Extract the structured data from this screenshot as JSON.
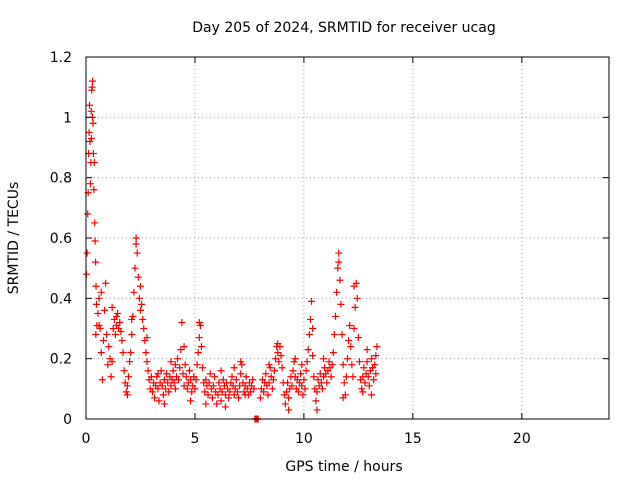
{
  "chart_data": {
    "type": "scatter",
    "title": "Day 205 of 2024, SRMTID for receiver ucag",
    "xlabel": "GPS time / hours",
    "ylabel": "SRMTID / TECUs",
    "xlim": [
      0,
      24
    ],
    "ylim": [
      0,
      1.2
    ],
    "x_ticks": [
      0,
      5,
      10,
      15,
      20
    ],
    "x_tick_labels": [
      "0",
      "5",
      "10",
      "15",
      "20"
    ],
    "y_ticks": [
      0,
      0.2,
      0.4,
      0.6,
      0.8,
      1.0,
      1.2
    ],
    "y_tick_labels": [
      "0",
      "0.2",
      "0.4",
      "0.6",
      "0.8",
      "1",
      "1.2"
    ],
    "grid": true,
    "marker": "+",
    "series": [
      {
        "name": "SRMTID",
        "color": "#ff0000",
        "points": [
          [
            0.02,
            0.48
          ],
          [
            0.05,
            0.55
          ],
          [
            0.08,
            0.68
          ],
          [
            0.1,
            0.75
          ],
          [
            0.12,
            0.88
          ],
          [
            0.14,
            0.95
          ],
          [
            0.16,
            1.04
          ],
          [
            0.18,
            0.92
          ],
          [
            0.2,
            0.78
          ],
          [
            0.22,
            0.85
          ],
          [
            0.24,
            1.02
          ],
          [
            0.26,
            1.09
          ],
          [
            0.28,
            1.1
          ],
          [
            0.3,
            1.12
          ],
          [
            0.32,
            0.98
          ],
          [
            0.34,
            0.88
          ],
          [
            0.36,
            0.76
          ],
          [
            0.38,
            0.85
          ],
          [
            0.4,
            0.65
          ],
          [
            0.42,
            0.59
          ],
          [
            0.44,
            0.52
          ],
          [
            0.46,
            0.44
          ],
          [
            0.48,
            0.38
          ],
          [
            0.5,
            0.31
          ],
          [
            0.55,
            0.35
          ],
          [
            0.6,
            0.4
          ],
          [
            0.65,
            0.3
          ],
          [
            0.7,
            0.22
          ],
          [
            0.75,
            0.13
          ],
          [
            0.8,
            0.26
          ],
          [
            0.85,
            0.36
          ],
          [
            0.9,
            0.45
          ],
          [
            0.95,
            0.28
          ],
          [
            1.0,
            0.18
          ],
          [
            1.05,
            0.24
          ],
          [
            1.1,
            0.2
          ],
          [
            1.15,
            0.14
          ],
          [
            1.2,
            0.19
          ],
          [
            1.25,
            0.3
          ],
          [
            1.3,
            0.33
          ],
          [
            1.35,
            0.28
          ],
          [
            1.4,
            0.31
          ],
          [
            1.45,
            0.35
          ],
          [
            1.5,
            0.3
          ],
          [
            1.55,
            0.32
          ],
          [
            1.6,
            0.29
          ],
          [
            1.65,
            0.26
          ],
          [
            1.7,
            0.22
          ],
          [
            1.75,
            0.16
          ],
          [
            1.8,
            0.12
          ],
          [
            1.85,
            0.09
          ],
          [
            1.9,
            0.11
          ],
          [
            1.95,
            0.14
          ],
          [
            2.0,
            0.19
          ],
          [
            2.05,
            0.22
          ],
          [
            2.1,
            0.28
          ],
          [
            2.15,
            0.34
          ],
          [
            2.2,
            0.42
          ],
          [
            2.25,
            0.5
          ],
          [
            2.3,
            0.58
          ],
          [
            2.35,
            0.55
          ],
          [
            2.4,
            0.47
          ],
          [
            2.45,
            0.4
          ],
          [
            2.5,
            0.36
          ],
          [
            2.55,
            0.38
          ],
          [
            2.6,
            0.33
          ],
          [
            2.65,
            0.3
          ],
          [
            2.7,
            0.26
          ],
          [
            2.75,
            0.22
          ],
          [
            2.8,
            0.19
          ],
          [
            2.85,
            0.16
          ],
          [
            2.9,
            0.13
          ],
          [
            2.95,
            0.1
          ],
          [
            3.0,
            0.14
          ],
          [
            3.05,
            0.09
          ],
          [
            3.1,
            0.12
          ],
          [
            3.15,
            0.07
          ],
          [
            3.2,
            0.11
          ],
          [
            3.25,
            0.14
          ],
          [
            3.3,
            0.1
          ],
          [
            3.35,
            0.06
          ],
          [
            3.4,
            0.12
          ],
          [
            3.45,
            0.16
          ],
          [
            3.5,
            0.11
          ],
          [
            3.55,
            0.08
          ],
          [
            3.6,
            0.13
          ],
          [
            3.65,
            0.1
          ],
          [
            3.7,
            0.15
          ],
          [
            3.75,
            0.12
          ],
          [
            3.8,
            0.09
          ],
          [
            3.85,
            0.14
          ],
          [
            3.9,
            0.11
          ],
          [
            3.95,
            0.13
          ],
          [
            4.0,
            0.16
          ],
          [
            4.05,
            0.12
          ],
          [
            4.1,
            0.1
          ],
          [
            4.15,
            0.14
          ],
          [
            4.2,
            0.2
          ],
          [
            4.25,
            0.13
          ],
          [
            4.3,
            0.17
          ],
          [
            4.35,
            0.23
          ],
          [
            4.4,
            0.32
          ],
          [
            4.45,
            0.15
          ],
          [
            4.5,
            0.11
          ],
          [
            4.55,
            0.18
          ],
          [
            4.6,
            0.14
          ],
          [
            4.65,
            0.1
          ],
          [
            4.7,
            0.12
          ],
          [
            4.75,
            0.16
          ],
          [
            4.8,
            0.13
          ],
          [
            4.85,
            0.09
          ],
          [
            4.9,
            0.11
          ],
          [
            4.95,
            0.14
          ],
          [
            5.0,
            0.1
          ],
          [
            5.05,
            0.13
          ],
          [
            5.1,
            0.18
          ],
          [
            5.15,
            0.22
          ],
          [
            5.2,
            0.27
          ],
          [
            5.25,
            0.31
          ],
          [
            5.3,
            0.24
          ],
          [
            5.35,
            0.17
          ],
          [
            5.4,
            0.12
          ],
          [
            5.45,
            0.09
          ],
          [
            5.5,
            0.13
          ],
          [
            5.55,
            0.11
          ],
          [
            5.6,
            0.08
          ],
          [
            5.65,
            0.12
          ],
          [
            5.7,
            0.15
          ],
          [
            5.75,
            0.1
          ],
          [
            5.8,
            0.07
          ],
          [
            5.85,
            0.11
          ],
          [
            5.9,
            0.14
          ],
          [
            5.95,
            0.09
          ],
          [
            6.0,
            0.05
          ],
          [
            6.05,
            0.08
          ],
          [
            6.1,
            0.12
          ],
          [
            6.15,
            0.1
          ],
          [
            6.2,
            0.06
          ],
          [
            6.25,
            0.09
          ],
          [
            6.3,
            0.13
          ],
          [
            6.35,
            0.11
          ],
          [
            6.4,
            0.08
          ],
          [
            6.45,
            0.12
          ],
          [
            6.5,
            0.1
          ],
          [
            6.55,
            0.07
          ],
          [
            6.6,
            0.09
          ],
          [
            6.65,
            0.12
          ],
          [
            6.7,
            0.14
          ],
          [
            6.75,
            0.11
          ],
          [
            6.8,
            0.08
          ],
          [
            6.85,
            0.1
          ],
          [
            6.9,
            0.13
          ],
          [
            6.95,
            0.09
          ],
          [
            7.0,
            0.07
          ],
          [
            7.05,
            0.11
          ],
          [
            7.1,
            0.15
          ],
          [
            7.15,
            0.18
          ],
          [
            7.2,
            0.12
          ],
          [
            7.25,
            0.09
          ],
          [
            7.3,
            0.11
          ],
          [
            7.35,
            0.14
          ],
          [
            7.4,
            0.1
          ],
          [
            7.45,
            0.08
          ],
          [
            7.5,
            0.12
          ],
          [
            7.55,
            0.09
          ],
          [
            7.6,
            0.11
          ],
          [
            7.65,
            0.13
          ],
          [
            7.7,
            0.1
          ],
          [
            7.75,
            0.0
          ],
          [
            7.8,
            0.0
          ],
          [
            7.85,
            0.0
          ],
          [
            7.9,
            0.0
          ],
          [
            8.0,
            0.07
          ],
          [
            8.05,
            0.1
          ],
          [
            8.1,
            0.13
          ],
          [
            8.15,
            0.09
          ],
          [
            8.2,
            0.12
          ],
          [
            8.25,
            0.15
          ],
          [
            8.3,
            0.11
          ],
          [
            8.35,
            0.08
          ],
          [
            8.4,
            0.12
          ],
          [
            8.45,
            0.17
          ],
          [
            8.5,
            0.14
          ],
          [
            8.55,
            0.1
          ],
          [
            8.6,
            0.13
          ],
          [
            8.65,
            0.16
          ],
          [
            8.7,
            0.2
          ],
          [
            8.75,
            0.24
          ],
          [
            8.8,
            0.22
          ],
          [
            8.85,
            0.19
          ],
          [
            8.9,
            0.24
          ],
          [
            8.95,
            0.21
          ],
          [
            9.0,
            0.17
          ],
          [
            9.05,
            0.12
          ],
          [
            9.1,
            0.08
          ],
          [
            9.15,
            0.05
          ],
          [
            9.2,
            0.09
          ],
          [
            9.25,
            0.12
          ],
          [
            9.3,
            0.07
          ],
          [
            9.35,
            0.1
          ],
          [
            9.4,
            0.14
          ],
          [
            9.45,
            0.11
          ],
          [
            9.5,
            0.16
          ],
          [
            9.55,
            0.19
          ],
          [
            9.6,
            0.14
          ],
          [
            9.65,
            0.1
          ],
          [
            9.7,
            0.13
          ],
          [
            9.75,
            0.09
          ],
          [
            9.8,
            0.12
          ],
          [
            9.85,
            0.15
          ],
          [
            9.9,
            0.11
          ],
          [
            9.95,
            0.08
          ],
          [
            10.0,
            0.13
          ],
          [
            10.05,
            0.1
          ],
          [
            10.1,
            0.16
          ],
          [
            10.15,
            0.19
          ],
          [
            10.2,
            0.23
          ],
          [
            10.25,
            0.28
          ],
          [
            10.3,
            0.33
          ],
          [
            10.35,
            0.39
          ],
          [
            10.4,
            0.21
          ],
          [
            10.45,
            0.14
          ],
          [
            10.5,
            0.1
          ],
          [
            10.55,
            0.06
          ],
          [
            10.6,
            0.09
          ],
          [
            10.65,
            0.13
          ],
          [
            10.7,
            0.11
          ],
          [
            10.75,
            0.15
          ],
          [
            10.8,
            0.12
          ],
          [
            10.85,
            0.1
          ],
          [
            10.9,
            0.14
          ],
          [
            10.95,
            0.17
          ],
          [
            11.0,
            0.15
          ],
          [
            11.05,
            0.12
          ],
          [
            11.1,
            0.16
          ],
          [
            11.15,
            0.19
          ],
          [
            11.2,
            0.17
          ],
          [
            11.25,
            0.14
          ],
          [
            11.3,
            0.18
          ],
          [
            11.35,
            0.22
          ],
          [
            11.4,
            0.28
          ],
          [
            11.45,
            0.34
          ],
          [
            11.5,
            0.42
          ],
          [
            11.55,
            0.5
          ],
          [
            11.6,
            0.55
          ],
          [
            11.65,
            0.46
          ],
          [
            11.7,
            0.38
          ],
          [
            11.75,
            0.28
          ],
          [
            11.8,
            0.18
          ],
          [
            11.85,
            0.12
          ],
          [
            11.9,
            0.08
          ],
          [
            11.95,
            0.14
          ],
          [
            12.0,
            0.2
          ],
          [
            12.05,
            0.26
          ],
          [
            12.1,
            0.31
          ],
          [
            12.15,
            0.24
          ],
          [
            12.2,
            0.18
          ],
          [
            12.25,
            0.14
          ],
          [
            12.3,
            0.3
          ],
          [
            12.35,
            0.37
          ],
          [
            12.4,
            0.45
          ],
          [
            12.45,
            0.4
          ],
          [
            12.5,
            0.27
          ],
          [
            12.55,
            0.19
          ],
          [
            12.6,
            0.13
          ],
          [
            12.65,
            0.1
          ],
          [
            12.7,
            0.14
          ],
          [
            12.75,
            0.17
          ],
          [
            12.8,
            0.12
          ],
          [
            12.85,
            0.15
          ],
          [
            12.9,
            0.19
          ],
          [
            12.95,
            0.14
          ],
          [
            13.0,
            0.11
          ],
          [
            13.05,
            0.16
          ],
          [
            13.1,
            0.2
          ],
          [
            13.15,
            0.17
          ],
          [
            13.2,
            0.13
          ],
          [
            13.25,
            0.18
          ],
          [
            13.3,
            0.21
          ],
          [
            13.35,
            0.24
          ],
          [
            0.25,
            0.93
          ],
          [
            0.3,
            1.0
          ],
          [
            0.6,
            0.31
          ],
          [
            1.4,
            0.34
          ],
          [
            2.3,
            0.6
          ],
          [
            2.5,
            0.44
          ],
          [
            3.3,
            0.15
          ],
          [
            4.1,
            0.18
          ],
          [
            5.2,
            0.32
          ],
          [
            6.2,
            0.16
          ],
          [
            7.3,
            0.08
          ],
          [
            8.8,
            0.25
          ],
          [
            9.9,
            0.18
          ],
          [
            10.4,
            0.3
          ],
          [
            11.6,
            0.52
          ],
          [
            12.3,
            0.44
          ],
          [
            12.9,
            0.23
          ],
          [
            13.3,
            0.15
          ],
          [
            2.8,
            0.27
          ],
          [
            3.6,
            0.05
          ],
          [
            4.8,
            0.06
          ],
          [
            5.5,
            0.05
          ],
          [
            6.4,
            0.04
          ],
          [
            9.3,
            0.03
          ],
          [
            10.6,
            0.03
          ],
          [
            11.8,
            0.07
          ],
          [
            1.2,
            0.37
          ],
          [
            0.7,
            0.42
          ],
          [
            3.9,
            0.19
          ],
          [
            4.5,
            0.24
          ],
          [
            6.8,
            0.17
          ],
          [
            7.1,
            0.19
          ],
          [
            8.4,
            0.18
          ],
          [
            9.6,
            0.2
          ],
          [
            10.9,
            0.2
          ],
          [
            12.7,
            0.09
          ],
          [
            13.1,
            0.08
          ],
          [
            1.9,
            0.08
          ],
          [
            2.1,
            0.33
          ],
          [
            0.45,
            0.28
          ]
        ]
      }
    ]
  }
}
